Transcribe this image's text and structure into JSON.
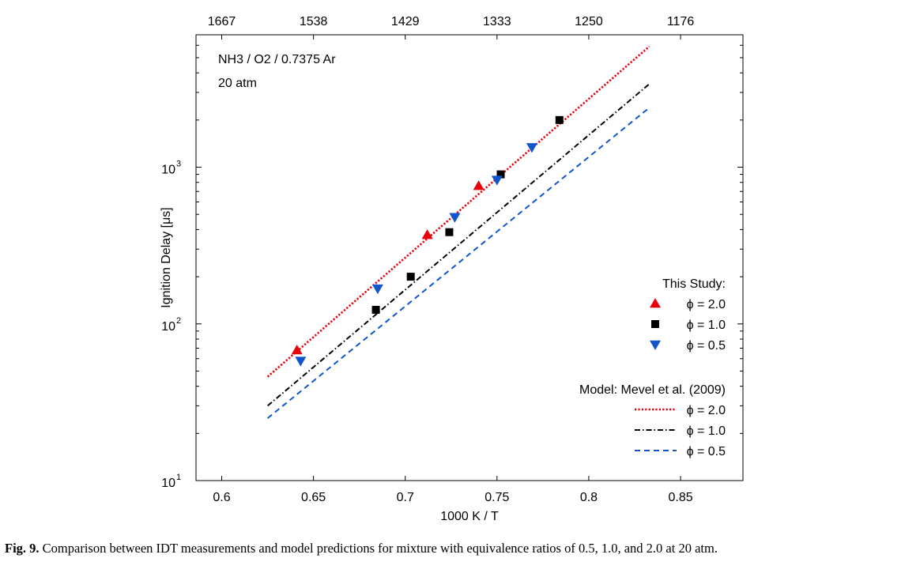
{
  "chart_data": {
    "type": "scatter",
    "xlabel": "1000 K / T",
    "ylabel": "Ignition Delay [μs]",
    "xlim": [
      0.586,
      0.884
    ],
    "ylim": [
      10,
      7000
    ],
    "yscale": "log",
    "x_ticks": [
      "0.6",
      "0.65",
      "0.7",
      "0.75",
      "0.8",
      "0.85"
    ],
    "y_ticks": [
      {
        "value": 10,
        "base": "10",
        "exp": "1"
      },
      {
        "value": 100,
        "base": "10",
        "exp": "2"
      },
      {
        "value": 1000,
        "base": "10",
        "exp": "3"
      }
    ],
    "top_axis_ticks": [
      "1667",
      "1538",
      "1429",
      "1333",
      "1250",
      "1176"
    ],
    "annotations": [
      "NH3 / O2 / 0.7375 Ar",
      "20 atm"
    ],
    "legend": {
      "position": "bottom-right",
      "study_title": "This Study:",
      "model_title": "Model: Mevel et al. (2009)"
    },
    "series": [
      {
        "name": "ϕ = 2.0",
        "group": "This Study",
        "kind": "markers",
        "marker": "triangle-up",
        "color": "#e8000b",
        "points": [
          [
            0.641,
            68
          ],
          [
            0.712,
            370
          ],
          [
            0.74,
            760
          ]
        ]
      },
      {
        "name": "ϕ = 1.0",
        "group": "This Study",
        "kind": "markers",
        "marker": "square",
        "color": "#000000",
        "points": [
          [
            0.684,
            123
          ],
          [
            0.703,
            200
          ],
          [
            0.724,
            385
          ],
          [
            0.752,
            900
          ],
          [
            0.784,
            2000
          ]
        ]
      },
      {
        "name": "ϕ = 0.5",
        "group": "This Study",
        "kind": "markers",
        "marker": "triangle-down",
        "color": "#1155cc",
        "points": [
          [
            0.643,
            58
          ],
          [
            0.685,
            168
          ],
          [
            0.727,
            480
          ],
          [
            0.75,
            830
          ],
          [
            0.769,
            1340
          ]
        ]
      },
      {
        "name": "ϕ = 2.0",
        "group": "Model",
        "kind": "line",
        "dash": "dotted",
        "color": "#e8000b",
        "points": [
          [
            0.625,
            46
          ],
          [
            0.833,
            5900
          ]
        ]
      },
      {
        "name": "ϕ = 1.0",
        "group": "Model",
        "kind": "line",
        "dash": "dashdot",
        "color": "#000000",
        "points": [
          [
            0.625,
            30
          ],
          [
            0.833,
            3400
          ]
        ]
      },
      {
        "name": "ϕ = 0.5",
        "group": "Model",
        "kind": "line",
        "dash": "dashed",
        "color": "#1155cc",
        "points": [
          [
            0.625,
            25
          ],
          [
            0.833,
            2400
          ]
        ]
      }
    ]
  },
  "caption": {
    "label": "Fig. 9.",
    "text": " Comparison between IDT measurements and model predictions for mixture with equivalence ratios of 0.5, 1.0, and 2.0 at 20 atm."
  }
}
